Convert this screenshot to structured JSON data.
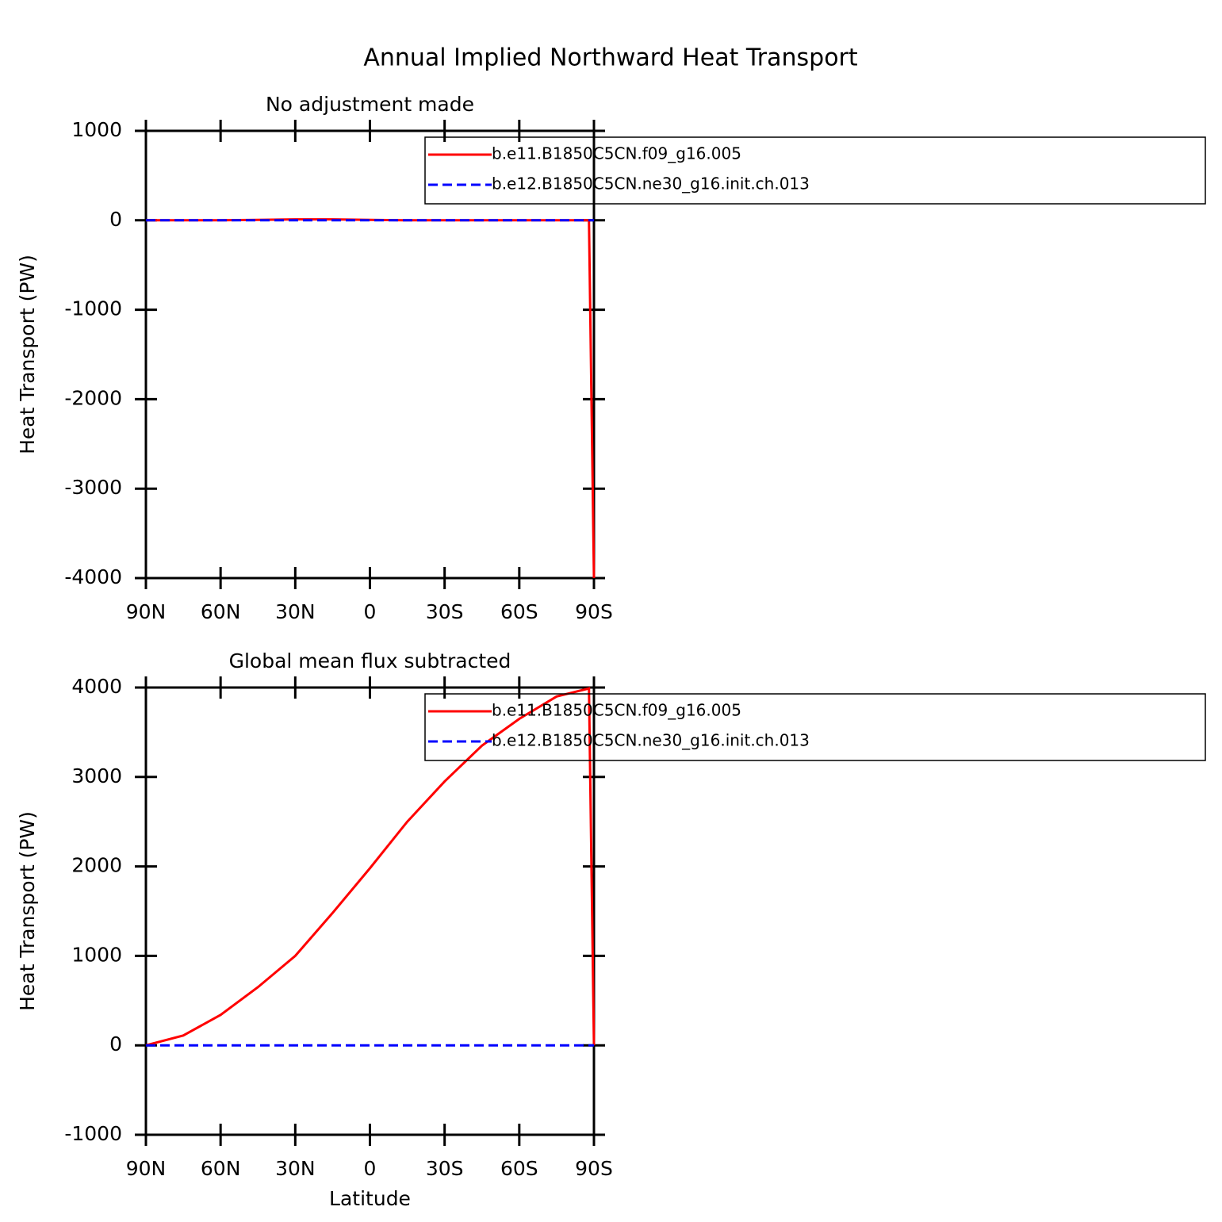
{
  "title": "Annual Implied Northward Heat Transport",
  "chart_data": [
    {
      "type": "line",
      "title": "No adjustment made",
      "ylabel": "Heat Transport (PW)",
      "x": [
        90,
        75,
        60,
        45,
        30,
        15,
        0,
        -15,
        -30,
        -45,
        -60,
        -75,
        -88,
        -90
      ],
      "series": [
        {
          "name": "b.e11.B1850C5CN.f09_g16.005",
          "color": "#ff0000",
          "dash": false,
          "values": [
            0,
            0,
            0,
            5,
            10,
            10,
            5,
            0,
            0,
            0,
            0,
            0,
            0,
            -4000
          ]
        },
        {
          "name": "b.e12.B1850C5CN.ne30_g16.init.ch.013",
          "color": "#0000ff",
          "dash": true,
          "values": [
            0,
            0,
            0,
            0,
            0,
            0,
            0,
            0,
            0,
            0,
            0,
            0,
            0,
            0
          ]
        }
      ],
      "xlim": [
        90,
        -90
      ],
      "xticks": [
        {
          "value": 90,
          "label": "90N"
        },
        {
          "value": 60,
          "label": "60N"
        },
        {
          "value": 30,
          "label": "30N"
        },
        0,
        {
          "value": -30,
          "label": "30S"
        },
        {
          "value": -60,
          "label": "60S"
        },
        {
          "value": -90,
          "label": "90S"
        }
      ],
      "ylim": [
        -4000,
        1000
      ],
      "yticks": [
        -4000,
        -3000,
        -2000,
        -1000,
        0,
        1000
      ]
    },
    {
      "type": "line",
      "title": "Global mean flux subtracted",
      "ylabel": "Heat Transport (PW)",
      "xlabel": "Latitude",
      "x": [
        90,
        75,
        60,
        45,
        30,
        15,
        0,
        -15,
        -30,
        -45,
        -60,
        -75,
        -88,
        -90
      ],
      "series": [
        {
          "name": "b.e11.B1850C5CN.f09_g16.005",
          "color": "#ff0000",
          "dash": false,
          "values": [
            0,
            110,
            340,
            650,
            1000,
            1480,
            1980,
            2500,
            2950,
            3350,
            3650,
            3900,
            3990,
            0
          ]
        },
        {
          "name": "b.e12.B1850C5CN.ne30_g16.init.ch.013",
          "color": "#0000ff",
          "dash": true,
          "values": [
            0,
            0,
            0,
            0,
            0,
            0,
            0,
            0,
            0,
            0,
            0,
            0,
            0,
            0
          ]
        }
      ],
      "xlim": [
        90,
        -90
      ],
      "xticks": [
        {
          "value": 90,
          "label": "90N"
        },
        {
          "value": 60,
          "label": "60N"
        },
        {
          "value": 30,
          "label": "30N"
        },
        0,
        {
          "value": -30,
          "label": "30S"
        },
        {
          "value": -60,
          "label": "60S"
        },
        {
          "value": -90,
          "label": "90S"
        }
      ],
      "ylim": [
        -1000,
        4000
      ],
      "yticks": [
        -1000,
        0,
        1000,
        2000,
        3000,
        4000
      ]
    }
  ]
}
